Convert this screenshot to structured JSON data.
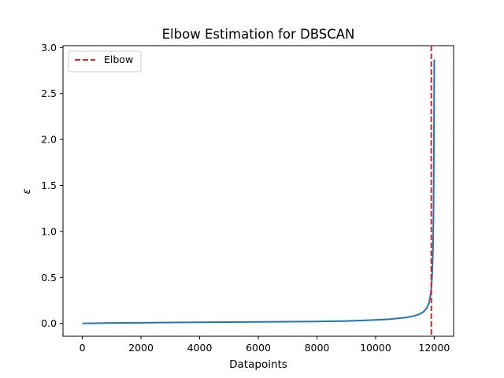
{
  "chart_data": {
    "type": "line",
    "title": "Elbow Estimation for DBSCAN",
    "xlabel": "Datapoints",
    "ylabel": "ε",
    "xlim": [
      -660,
      12660
    ],
    "ylim": [
      -0.14,
      3.02
    ],
    "xticks": [
      0,
      2000,
      4000,
      6000,
      8000,
      10000,
      12000
    ],
    "yticks": [
      0.0,
      0.5,
      1.0,
      1.5,
      2.0,
      2.5,
      3.0
    ],
    "grid": false,
    "legend_position": "upper-left",
    "series": [
      {
        "color": "#1f77b4",
        "x": [
          0,
          1000,
          2000,
          3000,
          4000,
          5000,
          6000,
          7000,
          8000,
          9000,
          9500,
          10000,
          10500,
          11000,
          11300,
          11500,
          11650,
          11750,
          11820,
          11870,
          11900,
          11920,
          11940,
          11960,
          11975,
          11985,
          11995,
          12000
        ],
        "y": [
          0.0,
          0.004,
          0.007,
          0.01,
          0.012,
          0.014,
          0.016,
          0.018,
          0.021,
          0.026,
          0.031,
          0.038,
          0.046,
          0.062,
          0.08,
          0.1,
          0.13,
          0.17,
          0.22,
          0.3,
          0.38,
          0.48,
          0.62,
          0.85,
          1.2,
          1.7,
          2.4,
          2.87
        ]
      }
    ],
    "annotations": [
      {
        "type": "vline",
        "label": "Elbow",
        "x": 11900,
        "color": "#d62728",
        "style": "dashed"
      }
    ]
  }
}
